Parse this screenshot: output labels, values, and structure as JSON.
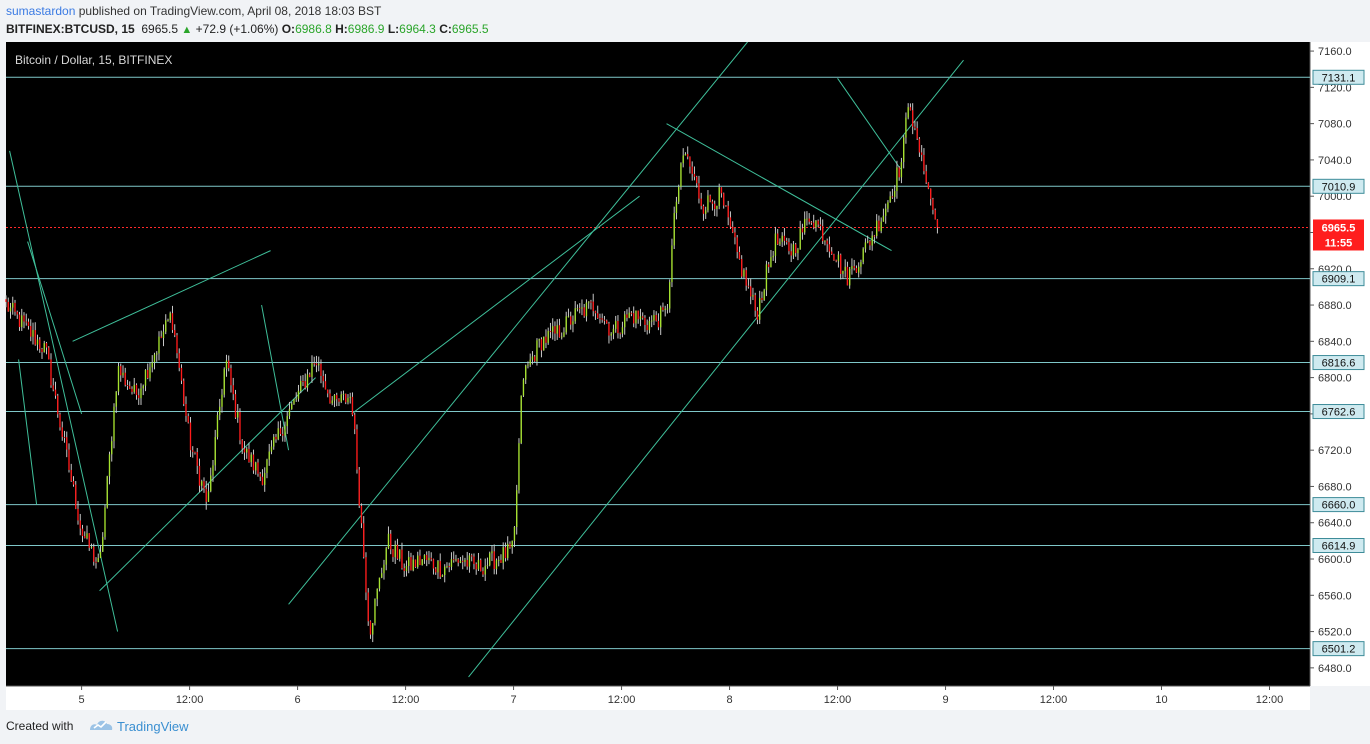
{
  "header": {
    "author": "sumastardon",
    "published_text": "published on TradingView.com, April 08, 2018 18:03 BST",
    "symbol": "BITFINEX:BTCUSD, 15",
    "last": "6965.5",
    "change": "+72.9 (+1.06%)",
    "o_label": "O:",
    "o_value": "6986.8",
    "h_label": "H:",
    "h_value": "6986.9",
    "l_label": "L:",
    "l_value": "6964.3",
    "c_label": "C:",
    "c_value": "6965.5"
  },
  "footer": {
    "created_with": "Created with",
    "brand": "TradingView"
  },
  "chart_data": {
    "type": "candlestick",
    "title": "Bitcoin / Dollar, 15, BITFINEX",
    "ylim": [
      6460,
      7170
    ],
    "y_ticks": [
      "6480.0",
      "6520.0",
      "6560.0",
      "6600.0",
      "6640.0",
      "6680.0",
      "6720.0",
      "6760.0",
      "6800.0",
      "6840.0",
      "6880.0",
      "6920.0",
      "6960.0",
      "7000.0",
      "7040.0",
      "7080.0",
      "7120.0",
      "7160.0"
    ],
    "x_ticks": [
      {
        "label": "5",
        "t": 9
      },
      {
        "label": "12:00",
        "t": 21
      },
      {
        "label": "6",
        "t": 33
      },
      {
        "label": "12:00",
        "t": 45
      },
      {
        "label": "7",
        "t": 57
      },
      {
        "label": "12:00",
        "t": 69
      },
      {
        "label": "8",
        "t": 81
      },
      {
        "label": "12:00",
        "t": 93
      },
      {
        "label": "9",
        "t": 105
      },
      {
        "label": "12:00",
        "t": 117
      },
      {
        "label": "10",
        "t": 129
      },
      {
        "label": "12:00",
        "t": 141
      }
    ],
    "x_range_hours": [
      0.6,
      145.5
    ],
    "horizontal_levels": [
      "7131.1",
      "7010.9",
      "6909.1",
      "6816.6",
      "6762.6",
      "6660.0",
      "6614.9",
      "6501.2"
    ],
    "last_price": {
      "value": "6965.5",
      "countdown": "11:55"
    },
    "path_hours": [
      0.6,
      5,
      9,
      11,
      13,
      15,
      19,
      21,
      23,
      25,
      27,
      29,
      31,
      33,
      35,
      37,
      39,
      41,
      43,
      45,
      47,
      49,
      51,
      53,
      55,
      57,
      58,
      60,
      62,
      64,
      66,
      68,
      70,
      72,
      74,
      75,
      76,
      78,
      80,
      82,
      84,
      86,
      88,
      90,
      92,
      94,
      96,
      98,
      98.8,
      100.2,
      101
    ],
    "path_close": [
      6880,
      6830,
      6630,
      6590,
      6810,
      6780,
      6870,
      6730,
      6660,
      6820,
      6720,
      6690,
      6740,
      6780,
      6820,
      6770,
      6780,
      6520,
      6620,
      6590,
      6600,
      6590,
      6600,
      6590,
      6600,
      6610,
      6800,
      6840,
      6850,
      6870,
      6880,
      6850,
      6870,
      6860,
      6870,
      6990,
      7050,
      6990,
      7000,
      6930,
      6870,
      6950,
      6940,
      6980,
      6950,
      6910,
      6940,
      6980,
      7000,
      7040,
      7120
    ],
    "pullback_close": [
      7100,
      7080,
      7070,
      7060,
      7050,
      7040,
      7030,
      7020,
      7010,
      6995,
      6985,
      6975,
      6965.5
    ],
    "trendlines": [
      {
        "t1": 1,
        "p1": 7050,
        "t2": 13,
        "p2": 6520
      },
      {
        "t1": 3,
        "p1": 6950,
        "t2": 9,
        "p2": 6760
      },
      {
        "t1": 2,
        "p1": 6820,
        "t2": 4,
        "p2": 6660
      },
      {
        "t1": 11,
        "p1": 6565,
        "t2": 35,
        "p2": 6800
      },
      {
        "t1": 8,
        "p1": 6840,
        "t2": 30,
        "p2": 6940
      },
      {
        "t1": 29,
        "p1": 6880,
        "t2": 32,
        "p2": 6720
      },
      {
        "t1": 32,
        "p1": 6550,
        "t2": 83,
        "p2": 7170
      },
      {
        "t1": 52,
        "p1": 6470,
        "t2": 107,
        "p2": 7150
      },
      {
        "t1": 39,
        "p1": 6760,
        "t2": 71,
        "p2": 7000
      },
      {
        "t1": 74,
        "p1": 7080,
        "t2": 99,
        "p2": 6940
      },
      {
        "t1": 93,
        "p1": 7130,
        "t2": 100,
        "p2": 7030
      }
    ]
  }
}
